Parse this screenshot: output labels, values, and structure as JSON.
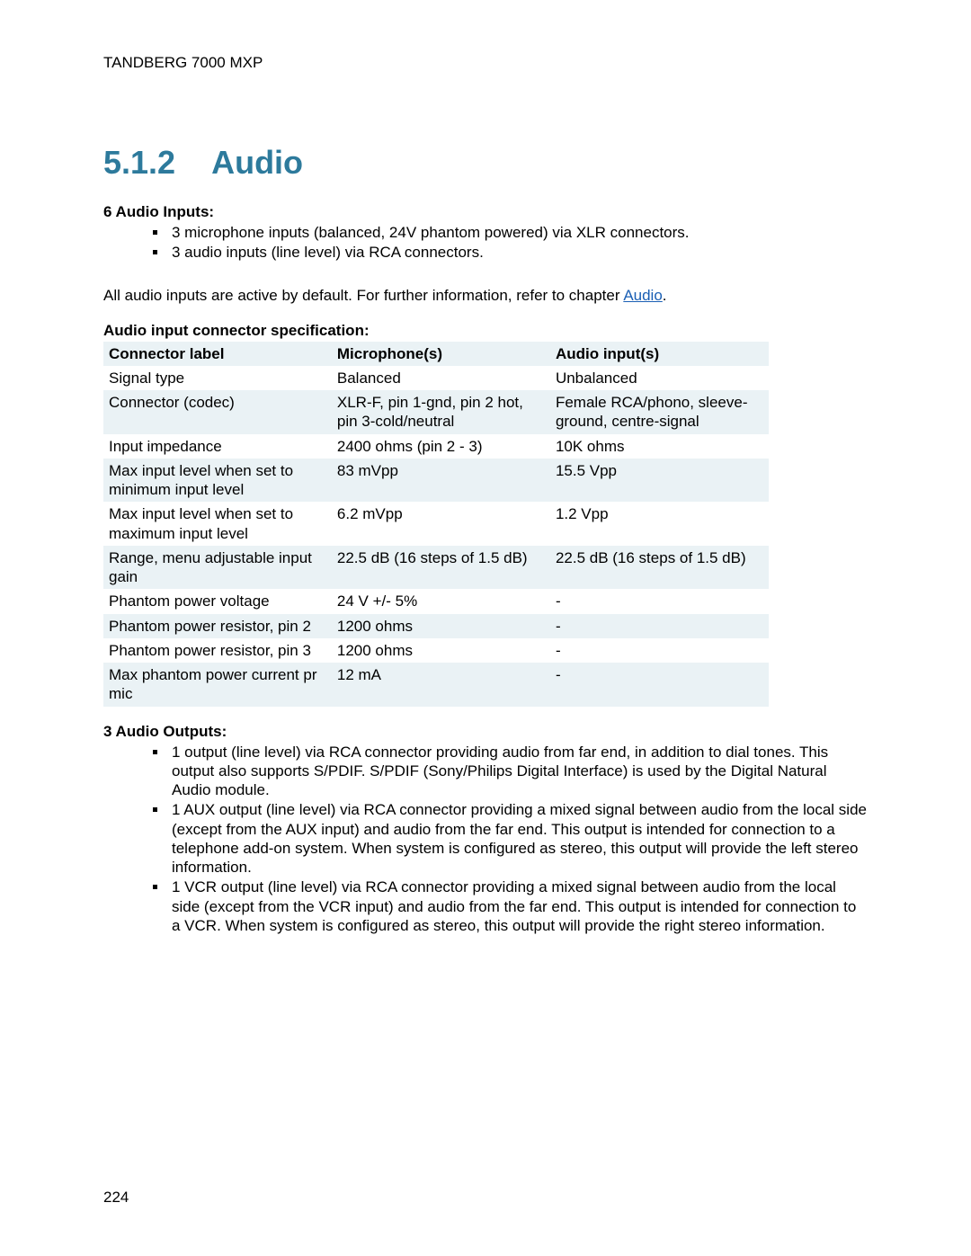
{
  "header": "TANDBERG 7000 MXP",
  "section_number": "5.1.2",
  "section_title": "Audio",
  "inputs_heading": "6 Audio Inputs:",
  "inputs_bullets": [
    "3 microphone inputs (balanced, 24V phantom powered) via XLR connectors.",
    "3 audio inputs (line level) via RCA connectors."
  ],
  "body_paragraph_pre": "All audio inputs are active by default. For further information, refer to chapter ",
  "body_paragraph_link": "Audio",
  "body_paragraph_post": ".",
  "table_caption": "Audio input connector specification:",
  "table": {
    "columns": [
      "Connector label",
      "Microphone(s)",
      "Audio input(s)"
    ],
    "rows": [
      [
        "Signal type",
        "Balanced",
        "Unbalanced"
      ],
      [
        "Connector (codec)",
        "XLR-F, pin 1-gnd, pin 2 hot, pin 3-cold/neutral",
        "Female RCA/phono, sleeve-ground, centre-signal"
      ],
      [
        "Input impedance",
        "2400 ohms (pin 2 - 3)",
        "10K ohms"
      ],
      [
        "Max input level when set to minimum input level",
        "83 mVpp",
        "15.5 Vpp"
      ],
      [
        "Max input level when set to maximum input level",
        "6.2 mVpp",
        "1.2 Vpp"
      ],
      [
        "Range, menu adjustable input gain",
        "22.5 dB (16 steps of 1.5 dB)",
        "22.5 dB (16 steps of 1.5 dB)"
      ],
      [
        "Phantom power voltage",
        "24 V +/- 5%",
        "-"
      ],
      [
        "Phantom power resistor, pin 2",
        "1200 ohms",
        "-"
      ],
      [
        "Phantom power resistor, pin 3",
        "1200 ohms",
        "-"
      ],
      [
        "Max phantom power current pr mic",
        "12 mA",
        "-"
      ]
    ],
    "header_bg": "#eaf2f5",
    "alt_row_bg": "#eaf2f5",
    "text_color": "#000000",
    "font_size_pt": 13
  },
  "outputs_heading": "3 Audio Outputs:",
  "outputs_bullets": [
    "1 output (line level) via RCA connector providing audio from far end, in addition to dial tones. This output also supports S/PDIF. S/PDIF (Sony/Philips Digital Interface) is used by the Digital Natural Audio module.",
    "1 AUX output (line level) via RCA connector providing a mixed signal between audio from the local side (except from the AUX input) and audio from the far end. This output is intended for connection to a telephone add-on system. When system is configured as stereo, this output will provide the left stereo information.",
    "1 VCR output (line level) via RCA connector providing a mixed signal between audio from the local side (except from the VCR input) and audio from the far end. This output is intended for connection to a VCR. When system is configured as stereo, this output will provide the right stereo information."
  ],
  "page_number": "224",
  "colors": {
    "heading": "#2d7a9c",
    "link": "#1a5fb4",
    "background": "#ffffff"
  }
}
